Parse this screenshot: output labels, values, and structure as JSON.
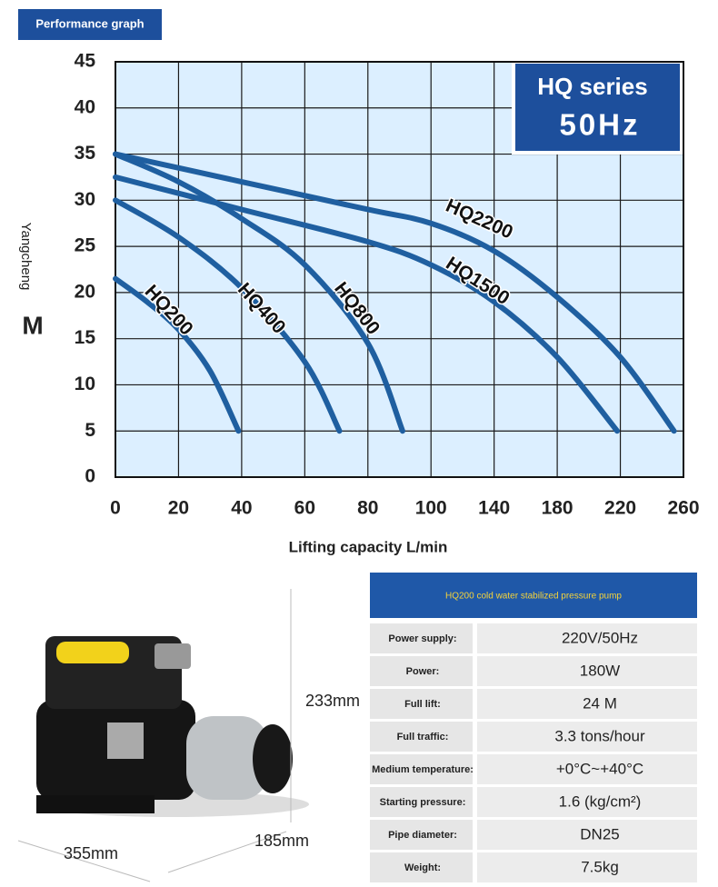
{
  "header": {
    "title": "Performance graph"
  },
  "chart_data": {
    "type": "line",
    "badge": {
      "title": "HQ series",
      "subtitle": "50Hz"
    },
    "y_label": "Yangcheng",
    "y_unit": "M",
    "x_label": "Lifting capacity L/min",
    "xlim": [
      0,
      260
    ],
    "xticks": [
      0,
      20,
      40,
      60,
      80,
      100,
      140,
      180,
      220,
      260
    ],
    "ylim": [
      0,
      45
    ],
    "yticks": [
      0,
      5,
      10,
      15,
      20,
      25,
      30,
      35,
      40,
      45
    ],
    "grid": true,
    "series": [
      {
        "name": "HQ200",
        "color": "#1f5fa0",
        "x": [
          0,
          10,
          20,
          30,
          39
        ],
        "values": [
          21.5,
          19,
          16,
          11.5,
          5
        ]
      },
      {
        "name": "HQ400",
        "color": "#1f5fa0",
        "x": [
          0,
          20,
          40,
          60,
          71
        ],
        "values": [
          30,
          26,
          20.5,
          12.5,
          5
        ]
      },
      {
        "name": "HQ800",
        "color": "#1f5fa0",
        "x": [
          0,
          20,
          40,
          60,
          80,
          91
        ],
        "values": [
          35,
          32,
          28,
          23,
          14.5,
          5
        ]
      },
      {
        "name": "HQ1500",
        "color": "#1f5fa0",
        "x": [
          0,
          40,
          80,
          100,
          140,
          180,
          218
        ],
        "values": [
          32.5,
          29,
          25.5,
          23,
          19,
          13,
          5
        ]
      },
      {
        "name": "HQ2200",
        "color": "#1f5fa0",
        "x": [
          0,
          40,
          80,
          100,
          140,
          180,
          220,
          254
        ],
        "values": [
          35,
          32,
          29,
          27.5,
          24.5,
          19.5,
          13,
          5
        ]
      }
    ]
  },
  "product": {
    "height": "233mm",
    "depth": "185mm",
    "length": "355mm"
  },
  "spec_table": {
    "title": "HQ200 cold water stabilized pressure pump",
    "rows": [
      [
        "Power supply:",
        "220V/50Hz"
      ],
      [
        "Power:",
        "180W"
      ],
      [
        "Full lift:",
        "24 M"
      ],
      [
        "Full traffic:",
        "3.3 tons/hour"
      ],
      [
        "Medium temperature:",
        "+0°C~+40°C"
      ],
      [
        "Starting pressure:",
        "1.6 (kg/cm²)"
      ],
      [
        "Pipe diameter:",
        "DN25"
      ],
      [
        "Weight:",
        "7.5kg"
      ]
    ]
  }
}
